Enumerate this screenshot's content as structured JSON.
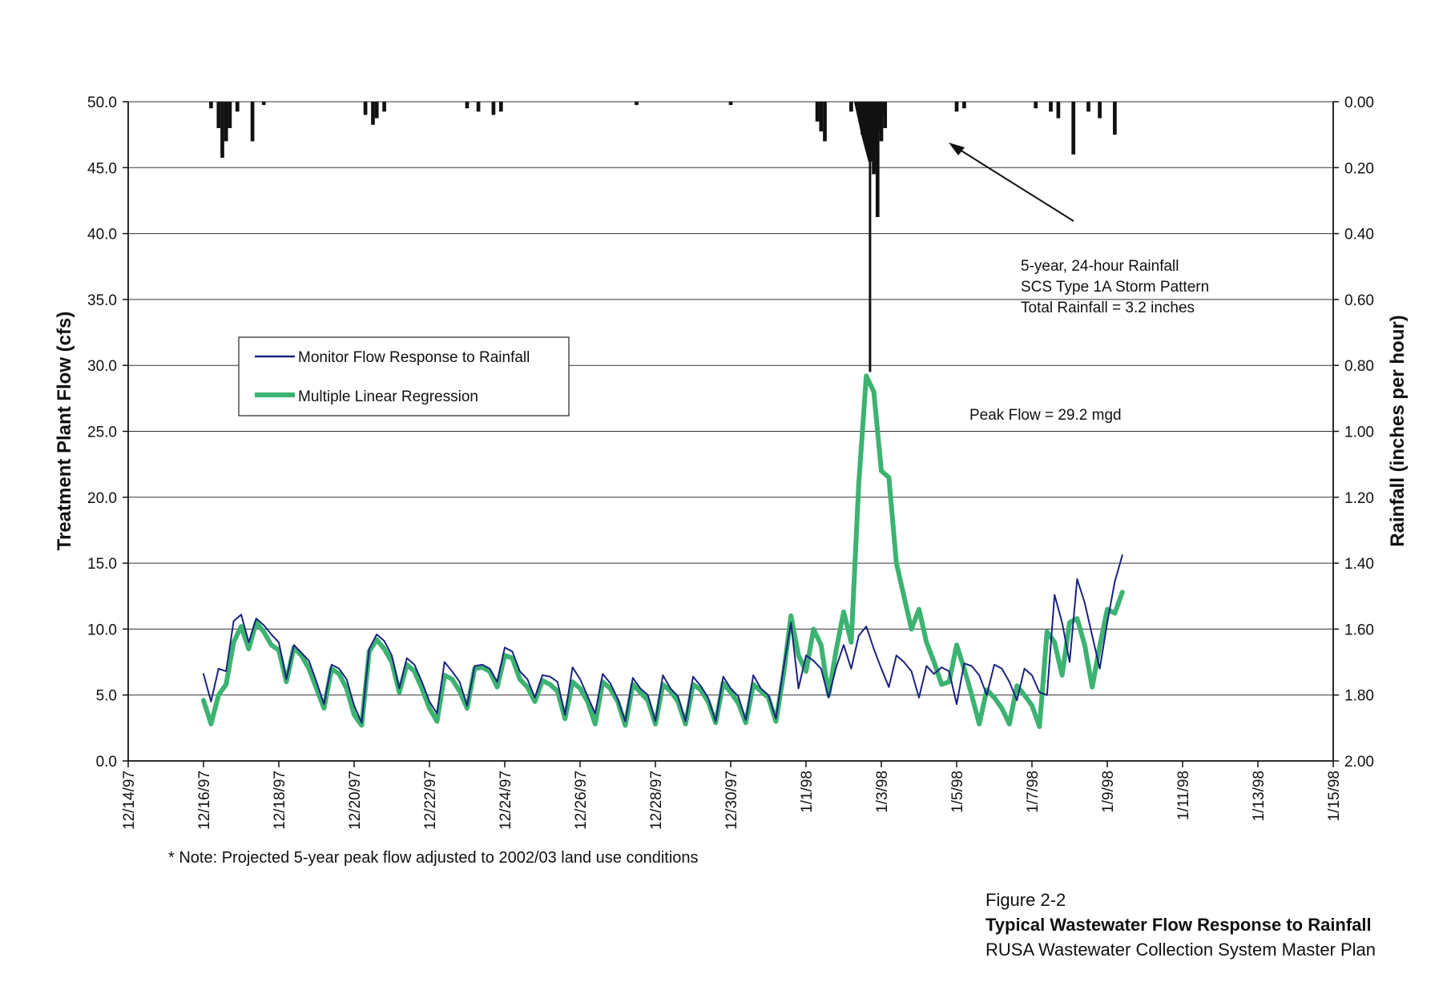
{
  "chart_data": {
    "type": "line",
    "y_left_label": "Treatment Plant Flow (cfs)",
    "y_right_label": "Rainfall (inches per hour)",
    "ylim": [
      0,
      50
    ],
    "ylim_right": [
      2.0,
      0.0
    ],
    "y_ticks_left": [
      "0.0",
      "5.0",
      "10.0",
      "15.0",
      "20.0",
      "25.0",
      "30.0",
      "35.0",
      "40.0",
      "45.0",
      "50.0"
    ],
    "y_ticks_right": [
      "2.00",
      "1.80",
      "1.60",
      "1.40",
      "1.20",
      "1.00",
      "0.80",
      "0.60",
      "0.40",
      "0.20",
      "0.00"
    ],
    "x_ticks": [
      "12/14/97",
      "12/16/97",
      "12/18/97",
      "12/20/97",
      "12/22/97",
      "12/24/97",
      "12/26/97",
      "12/28/97",
      "12/30/97",
      "1/1/98",
      "1/3/98",
      "1/5/98",
      "1/7/98",
      "1/9/98",
      "1/11/98",
      "1/13/98",
      "1/15/98"
    ],
    "x_range_days": [
      0,
      32
    ],
    "grid": true,
    "legend_position": "left",
    "series": [
      {
        "name": "Monitor Flow Response to Rainfall",
        "color": "#1a237e",
        "points": [
          [
            2.0,
            6.6
          ],
          [
            2.2,
            4.5
          ],
          [
            2.4,
            7.0
          ],
          [
            2.6,
            6.8
          ],
          [
            2.8,
            10.6
          ],
          [
            3.0,
            11.1
          ],
          [
            3.2,
            9.0
          ],
          [
            3.4,
            10.8
          ],
          [
            3.6,
            10.3
          ],
          [
            3.8,
            9.6
          ],
          [
            4.0,
            9.0
          ],
          [
            4.2,
            6.2
          ],
          [
            4.4,
            8.8
          ],
          [
            4.6,
            8.2
          ],
          [
            4.8,
            7.6
          ],
          [
            5.0,
            6.0
          ],
          [
            5.2,
            4.3
          ],
          [
            5.4,
            7.3
          ],
          [
            5.6,
            7.0
          ],
          [
            5.8,
            6.2
          ],
          [
            6.0,
            4.2
          ],
          [
            6.2,
            2.9
          ],
          [
            6.4,
            8.5
          ],
          [
            6.6,
            9.6
          ],
          [
            6.8,
            9.1
          ],
          [
            7.0,
            8.0
          ],
          [
            7.2,
            5.5
          ],
          [
            7.4,
            7.8
          ],
          [
            7.6,
            7.3
          ],
          [
            7.8,
            6.0
          ],
          [
            8.0,
            4.5
          ],
          [
            8.2,
            3.6
          ],
          [
            8.4,
            7.5
          ],
          [
            8.6,
            6.8
          ],
          [
            8.8,
            6.0
          ],
          [
            9.0,
            4.2
          ],
          [
            9.2,
            7.2
          ],
          [
            9.4,
            7.3
          ],
          [
            9.6,
            7.0
          ],
          [
            9.8,
            6.0
          ],
          [
            10.0,
            8.6
          ],
          [
            10.2,
            8.3
          ],
          [
            10.4,
            6.8
          ],
          [
            10.6,
            6.2
          ],
          [
            10.8,
            4.8
          ],
          [
            11.0,
            6.5
          ],
          [
            11.2,
            6.4
          ],
          [
            11.4,
            6.0
          ],
          [
            11.6,
            3.5
          ],
          [
            11.8,
            7.1
          ],
          [
            12.0,
            6.2
          ],
          [
            12.2,
            4.9
          ],
          [
            12.4,
            3.6
          ],
          [
            12.6,
            6.6
          ],
          [
            12.8,
            5.9
          ],
          [
            13.0,
            4.7
          ],
          [
            13.2,
            3.0
          ],
          [
            13.4,
            6.3
          ],
          [
            13.6,
            5.5
          ],
          [
            13.8,
            5.0
          ],
          [
            14.0,
            3.0
          ],
          [
            14.2,
            6.5
          ],
          [
            14.4,
            5.5
          ],
          [
            14.6,
            4.9
          ],
          [
            14.8,
            3.0
          ],
          [
            15.0,
            6.4
          ],
          [
            15.2,
            5.7
          ],
          [
            15.4,
            4.8
          ],
          [
            15.6,
            3.0
          ],
          [
            15.8,
            6.4
          ],
          [
            16.0,
            5.5
          ],
          [
            16.2,
            4.9
          ],
          [
            16.4,
            3.1
          ],
          [
            16.6,
            6.5
          ],
          [
            16.8,
            5.5
          ],
          [
            17.0,
            5.0
          ],
          [
            17.2,
            3.2
          ],
          [
            17.4,
            7.0
          ],
          [
            17.6,
            10.5
          ],
          [
            17.8,
            5.5
          ],
          [
            18.0,
            8.0
          ],
          [
            18.2,
            7.6
          ],
          [
            18.4,
            7.0
          ],
          [
            18.6,
            4.8
          ],
          [
            18.8,
            7.1
          ],
          [
            19.0,
            8.8
          ],
          [
            19.2,
            7.0
          ],
          [
            19.4,
            9.5
          ],
          [
            19.6,
            10.2
          ],
          [
            19.8,
            8.5
          ],
          [
            20.0,
            7.0
          ],
          [
            20.2,
            5.6
          ],
          [
            20.4,
            8.0
          ],
          [
            20.6,
            7.5
          ],
          [
            20.8,
            6.8
          ],
          [
            21.0,
            4.8
          ],
          [
            21.2,
            7.2
          ],
          [
            21.4,
            6.6
          ],
          [
            21.6,
            7.1
          ],
          [
            21.8,
            6.8
          ],
          [
            22.0,
            4.3
          ],
          [
            22.2,
            7.4
          ],
          [
            22.4,
            7.2
          ],
          [
            22.6,
            6.5
          ],
          [
            22.8,
            5.0
          ],
          [
            23.0,
            7.3
          ],
          [
            23.2,
            7.0
          ],
          [
            23.4,
            6.0
          ],
          [
            23.6,
            4.6
          ],
          [
            23.8,
            7.0
          ],
          [
            24.0,
            6.5
          ],
          [
            24.2,
            5.2
          ],
          [
            24.4,
            5.0
          ],
          [
            24.6,
            12.6
          ],
          [
            24.8,
            10.5
          ],
          [
            25.0,
            7.5
          ],
          [
            25.2,
            13.8
          ],
          [
            25.4,
            12.0
          ],
          [
            25.6,
            9.5
          ],
          [
            25.8,
            7.0
          ],
          [
            26.0,
            10.5
          ],
          [
            26.2,
            13.6
          ],
          [
            26.4,
            15.6
          ]
        ]
      },
      {
        "name": "Multiple Linear Regression",
        "color": "#3cb371",
        "points": [
          [
            2.0,
            4.6
          ],
          [
            2.2,
            2.8
          ],
          [
            2.4,
            5.0
          ],
          [
            2.6,
            5.8
          ],
          [
            2.8,
            9.0
          ],
          [
            3.0,
            10.2
          ],
          [
            3.2,
            8.5
          ],
          [
            3.4,
            10.5
          ],
          [
            3.6,
            9.8
          ],
          [
            3.8,
            8.8
          ],
          [
            4.0,
            8.4
          ],
          [
            4.2,
            6.0
          ],
          [
            4.4,
            8.6
          ],
          [
            4.6,
            8.0
          ],
          [
            4.8,
            7.0
          ],
          [
            5.0,
            5.5
          ],
          [
            5.2,
            4.0
          ],
          [
            5.4,
            7.0
          ],
          [
            5.6,
            6.6
          ],
          [
            5.8,
            5.5
          ],
          [
            6.0,
            3.5
          ],
          [
            6.2,
            2.7
          ],
          [
            6.4,
            8.3
          ],
          [
            6.6,
            9.2
          ],
          [
            6.8,
            8.5
          ],
          [
            7.0,
            7.5
          ],
          [
            7.2,
            5.2
          ],
          [
            7.4,
            7.3
          ],
          [
            7.6,
            6.8
          ],
          [
            7.8,
            5.5
          ],
          [
            8.0,
            4.0
          ],
          [
            8.2,
            3.0
          ],
          [
            8.4,
            6.5
          ],
          [
            8.6,
            6.2
          ],
          [
            8.8,
            5.3
          ],
          [
            9.0,
            4.0
          ],
          [
            9.2,
            7.0
          ],
          [
            9.4,
            7.1
          ],
          [
            9.6,
            6.8
          ],
          [
            9.8,
            5.6
          ],
          [
            10.0,
            8.0
          ],
          [
            10.2,
            7.8
          ],
          [
            10.4,
            6.2
          ],
          [
            10.6,
            5.6
          ],
          [
            10.8,
            4.5
          ],
          [
            11.0,
            6.1
          ],
          [
            11.2,
            5.8
          ],
          [
            11.4,
            5.3
          ],
          [
            11.6,
            3.2
          ],
          [
            11.8,
            6.0
          ],
          [
            12.0,
            5.5
          ],
          [
            12.2,
            4.5
          ],
          [
            12.4,
            2.8
          ],
          [
            12.6,
            6.0
          ],
          [
            12.8,
            5.5
          ],
          [
            13.0,
            4.5
          ],
          [
            13.2,
            2.7
          ],
          [
            13.4,
            5.8
          ],
          [
            13.6,
            5.2
          ],
          [
            13.8,
            4.6
          ],
          [
            14.0,
            2.8
          ],
          [
            14.2,
            5.8
          ],
          [
            14.4,
            5.3
          ],
          [
            14.6,
            4.5
          ],
          [
            14.8,
            2.8
          ],
          [
            15.0,
            5.8
          ],
          [
            15.2,
            5.4
          ],
          [
            15.4,
            4.5
          ],
          [
            15.6,
            2.9
          ],
          [
            15.8,
            5.9
          ],
          [
            16.0,
            5.2
          ],
          [
            16.2,
            4.4
          ],
          [
            16.4,
            2.9
          ],
          [
            16.6,
            5.8
          ],
          [
            16.8,
            5.3
          ],
          [
            17.0,
            4.8
          ],
          [
            17.2,
            3.0
          ],
          [
            17.4,
            6.5
          ],
          [
            17.6,
            11.0
          ],
          [
            17.8,
            8.0
          ],
          [
            18.0,
            6.8
          ],
          [
            18.2,
            10.0
          ],
          [
            18.4,
            8.8
          ],
          [
            18.6,
            5.0
          ],
          [
            18.8,
            8.4
          ],
          [
            19.0,
            11.3
          ],
          [
            19.2,
            9.0
          ],
          [
            19.4,
            21.0
          ],
          [
            19.6,
            29.2
          ],
          [
            19.8,
            28.0
          ],
          [
            20.0,
            22.0
          ],
          [
            20.2,
            21.5
          ],
          [
            20.4,
            15.0
          ],
          [
            20.6,
            12.5
          ],
          [
            20.8,
            10.0
          ],
          [
            21.0,
            11.5
          ],
          [
            21.2,
            9.0
          ],
          [
            21.4,
            7.5
          ],
          [
            21.6,
            5.8
          ],
          [
            21.8,
            6.0
          ],
          [
            22.0,
            8.8
          ],
          [
            22.2,
            7.0
          ],
          [
            22.4,
            5.0
          ],
          [
            22.6,
            2.8
          ],
          [
            22.8,
            5.4
          ],
          [
            23.0,
            4.8
          ],
          [
            23.2,
            4.0
          ],
          [
            23.4,
            2.8
          ],
          [
            23.6,
            5.7
          ],
          [
            23.8,
            5.0
          ],
          [
            24.0,
            4.2
          ],
          [
            24.2,
            2.6
          ],
          [
            24.4,
            9.8
          ],
          [
            24.6,
            9.0
          ],
          [
            24.8,
            6.5
          ],
          [
            25.0,
            10.5
          ],
          [
            25.2,
            10.8
          ],
          [
            25.4,
            8.8
          ],
          [
            25.6,
            5.6
          ],
          [
            25.8,
            8.7
          ],
          [
            26.0,
            11.5
          ],
          [
            26.2,
            11.2
          ],
          [
            26.4,
            12.8
          ]
        ]
      },
      {
        "name": "Rainfall",
        "color": "#111111",
        "axis": "right",
        "bars": [
          [
            2.2,
            0.02
          ],
          [
            2.4,
            0.08
          ],
          [
            2.5,
            0.17
          ],
          [
            2.6,
            0.12
          ],
          [
            2.7,
            0.08
          ],
          [
            2.9,
            0.03
          ],
          [
            3.3,
            0.12
          ],
          [
            3.6,
            0.01
          ],
          [
            6.3,
            0.04
          ],
          [
            6.5,
            0.07
          ],
          [
            6.6,
            0.05
          ],
          [
            6.8,
            0.03
          ],
          [
            9.0,
            0.02
          ],
          [
            9.3,
            0.03
          ],
          [
            9.7,
            0.04
          ],
          [
            9.9,
            0.03
          ],
          [
            13.5,
            0.01
          ],
          [
            16.0,
            0.01
          ],
          [
            18.3,
            0.06
          ],
          [
            18.4,
            0.09
          ],
          [
            18.5,
            0.12
          ],
          [
            19.2,
            0.03
          ],
          [
            19.5,
            0.1
          ],
          [
            19.6,
            0.12
          ],
          [
            19.7,
            0.18
          ],
          [
            19.8,
            0.22
          ],
          [
            19.9,
            0.35
          ],
          [
            20.0,
            0.12
          ],
          [
            20.1,
            0.08
          ],
          [
            22.0,
            0.03
          ],
          [
            22.2,
            0.02
          ],
          [
            24.1,
            0.02
          ],
          [
            24.5,
            0.03
          ],
          [
            24.7,
            0.05
          ],
          [
            25.1,
            0.16
          ],
          [
            25.5,
            0.03
          ],
          [
            25.8,
            0.05
          ],
          [
            26.2,
            0.1
          ]
        ],
        "peak_spike": [
          19.7,
          0.82
        ]
      }
    ],
    "annotations": {
      "storm_line1": "5-year, 24-hour Rainfall",
      "storm_line2": "SCS Type 1A Storm Pattern",
      "storm_line3": "Total Rainfall = 3.2 inches",
      "peak_flow": "Peak Flow = 29.2 mgd"
    }
  },
  "note": "* Note: Projected 5-year peak flow adjusted to 2002/03 land use conditions",
  "figure": {
    "number": "Figure 2-2",
    "title": "Typical Wastewater Flow Response to Rainfall",
    "subtitle": "RUSA Wastewater Collection System Master Plan"
  }
}
